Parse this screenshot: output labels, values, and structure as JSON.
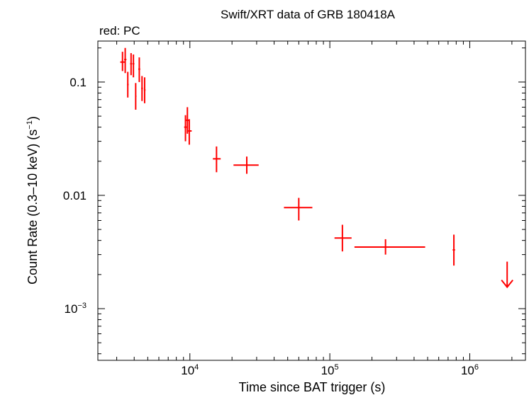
{
  "chart_data": {
    "type": "scatter",
    "title": "Swift/XRT data of GRB 180418A",
    "subtitle": "red: PC",
    "xlabel": "Time since BAT trigger (s)",
    "ylabel": "Count Rate (0.3–10 keV) (s",
    "ylabel_sup": "−1",
    "ylabel_end": ")",
    "x_scale": "log",
    "y_scale": "log",
    "xlim": [
      2200,
      2500000
    ],
    "ylim": [
      0.00035,
      0.23
    ],
    "x_ticks": [
      {
        "value": 10000,
        "base": "10",
        "exp": "4"
      },
      {
        "value": 100000,
        "base": "10",
        "exp": "5"
      },
      {
        "value": 1000000,
        "base": "10",
        "exp": "6"
      }
    ],
    "y_ticks": [
      {
        "value": 0.1,
        "label": "0.1"
      },
      {
        "value": 0.01,
        "label": "0.01"
      },
      {
        "value": 0.001,
        "base": "10",
        "exp": "−3"
      }
    ],
    "color": "#ff0000",
    "series": [
      {
        "points": [
          {
            "x": 3300,
            "x_lo": 3180,
            "x_hi": 3440,
            "y": 0.15,
            "y_lo": 0.125,
            "y_hi": 0.185
          },
          {
            "x": 3450,
            "x_lo": 3390,
            "x_hi": 3520,
            "y": 0.158,
            "y_lo": 0.12,
            "y_hi": 0.2
          },
          {
            "x": 3600,
            "x_lo": 3560,
            "x_hi": 3650,
            "y": 0.095,
            "y_lo": 0.073,
            "y_hi": 0.123
          },
          {
            "x": 3800,
            "x_lo": 3740,
            "x_hi": 3870,
            "y": 0.145,
            "y_lo": 0.115,
            "y_hi": 0.18
          },
          {
            "x": 3950,
            "x_lo": 3900,
            "x_hi": 4010,
            "y": 0.145,
            "y_lo": 0.11,
            "y_hi": 0.175
          },
          {
            "x": 4100,
            "x_lo": 4060,
            "x_hi": 4150,
            "y": 0.075,
            "y_lo": 0.057,
            "y_hi": 0.098
          },
          {
            "x": 4350,
            "x_lo": 4280,
            "x_hi": 4420,
            "y": 0.13,
            "y_lo": 0.1,
            "y_hi": 0.165
          },
          {
            "x": 4550,
            "x_lo": 4490,
            "x_hi": 4620,
            "y": 0.088,
            "y_lo": 0.068,
            "y_hi": 0.113
          },
          {
            "x": 4750,
            "x_lo": 4690,
            "x_hi": 4820,
            "y": 0.085,
            "y_lo": 0.065,
            "y_hi": 0.11
          },
          {
            "x": 9300,
            "x_lo": 9100,
            "x_hi": 9500,
            "y": 0.04,
            "y_lo": 0.03,
            "y_hi": 0.051
          },
          {
            "x": 9600,
            "x_lo": 9400,
            "x_hi": 9800,
            "y": 0.046,
            "y_lo": 0.035,
            "y_hi": 0.06
          },
          {
            "x": 9900,
            "x_lo": 9700,
            "x_hi": 10300,
            "y": 0.037,
            "y_lo": 0.028,
            "y_hi": 0.047
          },
          {
            "x": 15500,
            "x_lo": 14600,
            "x_hi": 16600,
            "y": 0.021,
            "y_lo": 0.016,
            "y_hi": 0.027
          },
          {
            "x": 25500,
            "x_lo": 20500,
            "x_hi": 31000,
            "y": 0.0185,
            "y_lo": 0.0155,
            "y_hi": 0.022
          },
          {
            "x": 60000,
            "x_lo": 47000,
            "x_hi": 75000,
            "y": 0.0078,
            "y_lo": 0.006,
            "y_hi": 0.0095
          },
          {
            "x": 123000,
            "x_lo": 108000,
            "x_hi": 143000,
            "y": 0.0042,
            "y_lo": 0.0032,
            "y_hi": 0.0055
          },
          {
            "x": 250000,
            "x_lo": 150000,
            "x_hi": 480000,
            "y": 0.0035,
            "y_lo": 0.003,
            "y_hi": 0.0041
          },
          {
            "x": 770000,
            "x_lo": 755000,
            "x_hi": 785000,
            "y": 0.0033,
            "y_lo": 0.0024,
            "y_hi": 0.0045
          }
        ],
        "upper_limits": [
          {
            "x": 1850000,
            "y": 0.0026
          }
        ]
      }
    ]
  }
}
